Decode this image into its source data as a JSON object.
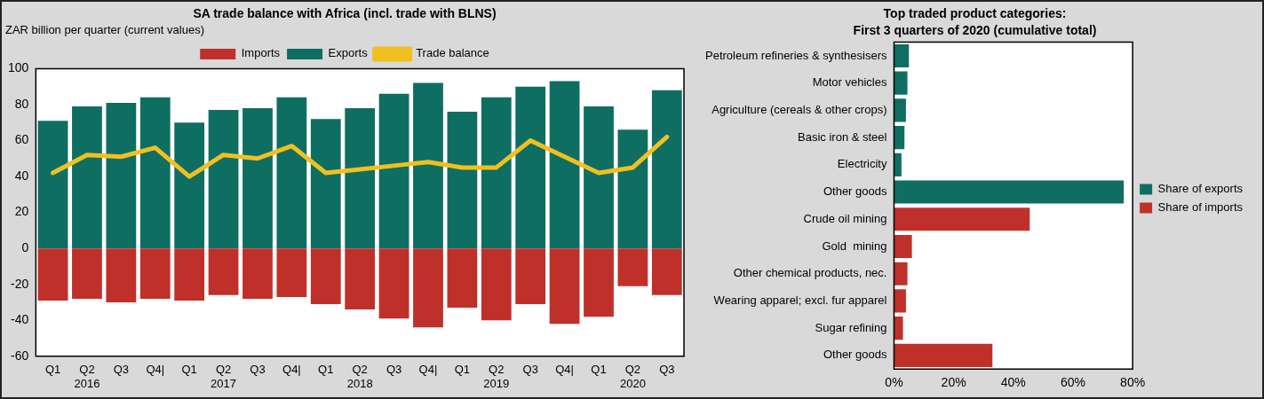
{
  "chart_data": [
    {
      "type": "bar",
      "title": "SA trade balance with Africa (incl. trade with BLNS)",
      "subtitle": "ZAR billion per quarter (current values)",
      "categories": [
        "Q1",
        "Q2\n2016",
        "Q3",
        "Q4|",
        "Q1",
        "Q2\n2017",
        "Q3",
        "Q4|",
        "Q1",
        "Q2\n2018",
        "Q3",
        "Q4|",
        "Q1",
        "Q2\n2019",
        "Q3",
        "Q4|",
        "Q1",
        "Q2\n2020",
        "Q3"
      ],
      "series": [
        {
          "name": "Imports",
          "color": "#c0302a",
          "values": [
            -29,
            -28,
            -30,
            -28,
            -29,
            -26,
            -28,
            -27,
            -31,
            -34,
            -39,
            -44,
            -33,
            -40,
            -31,
            -42,
            -38,
            -21,
            -26
          ]
        },
        {
          "name": "Exports",
          "color": "#0f6e62",
          "values": [
            71,
            79,
            81,
            84,
            70,
            77,
            78,
            84,
            72,
            78,
            86,
            92,
            76,
            84,
            90,
            93,
            79,
            66,
            88
          ]
        },
        {
          "name": "Trade balance",
          "type": "line",
          "color": "#f0c020",
          "values": [
            42,
            52,
            51,
            56,
            40,
            52,
            50,
            57,
            42,
            44,
            46,
            48,
            45,
            45,
            60,
            51,
            42,
            45,
            62
          ]
        }
      ],
      "stacked": true,
      "ylim": [
        -60,
        100
      ],
      "yticks": [
        -60,
        -40,
        -20,
        0,
        20,
        40,
        60,
        80,
        100
      ],
      "legend": "top",
      "grid": false,
      "marker": "none"
    },
    {
      "type": "bar",
      "orientation": "horizontal",
      "title": "Top traded product categories:",
      "subtitle": "First 3 quarters of 2020 (cumulative total)",
      "categories": [
        "Petroleum refineries & synthesisers",
        "Motor vehicles",
        "Agriculture (cereals & other crops)",
        "Basic iron & steel",
        "Electricity",
        "Other goods",
        "Crude oil mining",
        "Gold  mining",
        "Other chemical products, nec.",
        "Wearing apparel; excl. fur apparel",
        "Sugar refining",
        "Other goods"
      ],
      "series": [
        {
          "name": "Share of exports",
          "color": "#0f6e62",
          "values": [
            5,
            4.5,
            4,
            3.5,
            2.5,
            77,
            null,
            null,
            null,
            null,
            null,
            null
          ]
        },
        {
          "name": "Share of imports",
          "color": "#c0302a",
          "values": [
            null,
            null,
            null,
            null,
            null,
            null,
            45.5,
            6,
            4.5,
            4,
            3,
            33
          ]
        }
      ],
      "stacked": true,
      "xlim": [
        0,
        80
      ],
      "xticks": [
        {
          "value": 0,
          "label": "0%"
        },
        {
          "value": 20,
          "label": "20%"
        },
        {
          "value": 40,
          "label": "40%"
        },
        {
          "value": 60,
          "label": "60%"
        },
        {
          "value": 80,
          "label": "80%"
        }
      ],
      "legend": "right",
      "grid": false
    }
  ]
}
